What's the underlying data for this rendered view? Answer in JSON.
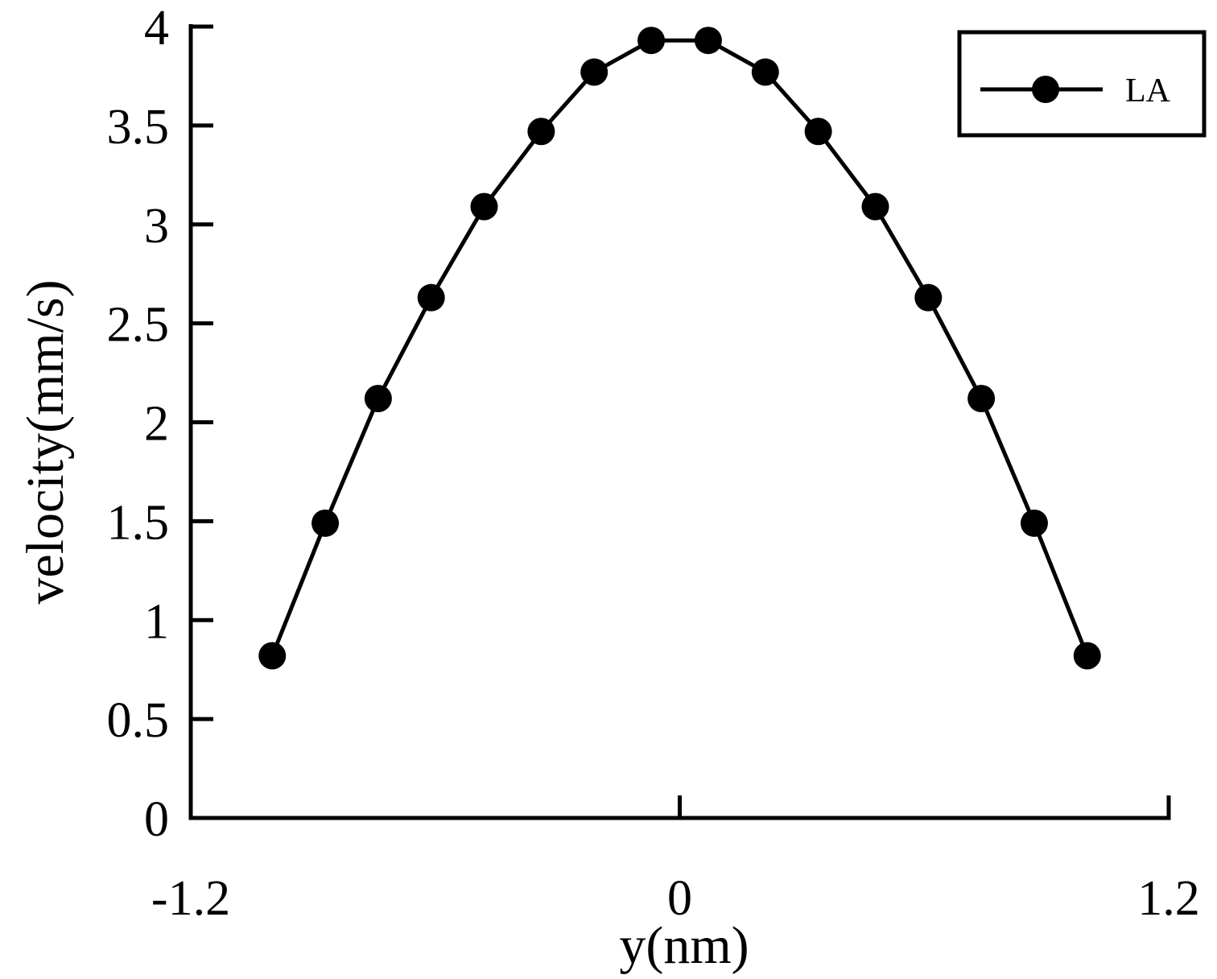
{
  "chart_data": {
    "type": "line",
    "title": "",
    "xlabel": "y(nm)",
    "ylabel": "velocity(mm/s)",
    "xlim": [
      -1.2,
      1.2
    ],
    "ylim": [
      0,
      4
    ],
    "x_ticks": [
      -1.2,
      0,
      1.2
    ],
    "x_tick_labels": [
      "-1.2",
      "0",
      "1.2"
    ],
    "y_ticks": [
      0,
      0.5,
      1,
      1.5,
      2,
      2.5,
      3,
      3.5,
      4
    ],
    "y_tick_labels": [
      "0",
      "0.5",
      "1",
      "1.5",
      "2",
      "2.5",
      "3",
      "3.5",
      "4"
    ],
    "grid": false,
    "legend_position": "top-right",
    "series": [
      {
        "name": "LA",
        "color": "#000000",
        "marker": "circle",
        "x": [
          -1.0,
          -0.87,
          -0.74,
          -0.61,
          -0.48,
          -0.34,
          -0.21,
          -0.07,
          0.07,
          0.21,
          0.34,
          0.48,
          0.61,
          0.74,
          0.87,
          1.0
        ],
        "y": [
          0.82,
          1.49,
          2.12,
          2.63,
          3.09,
          3.47,
          3.77,
          3.93,
          3.93,
          3.77,
          3.47,
          3.09,
          2.63,
          2.12,
          1.49,
          0.82
        ]
      }
    ]
  }
}
